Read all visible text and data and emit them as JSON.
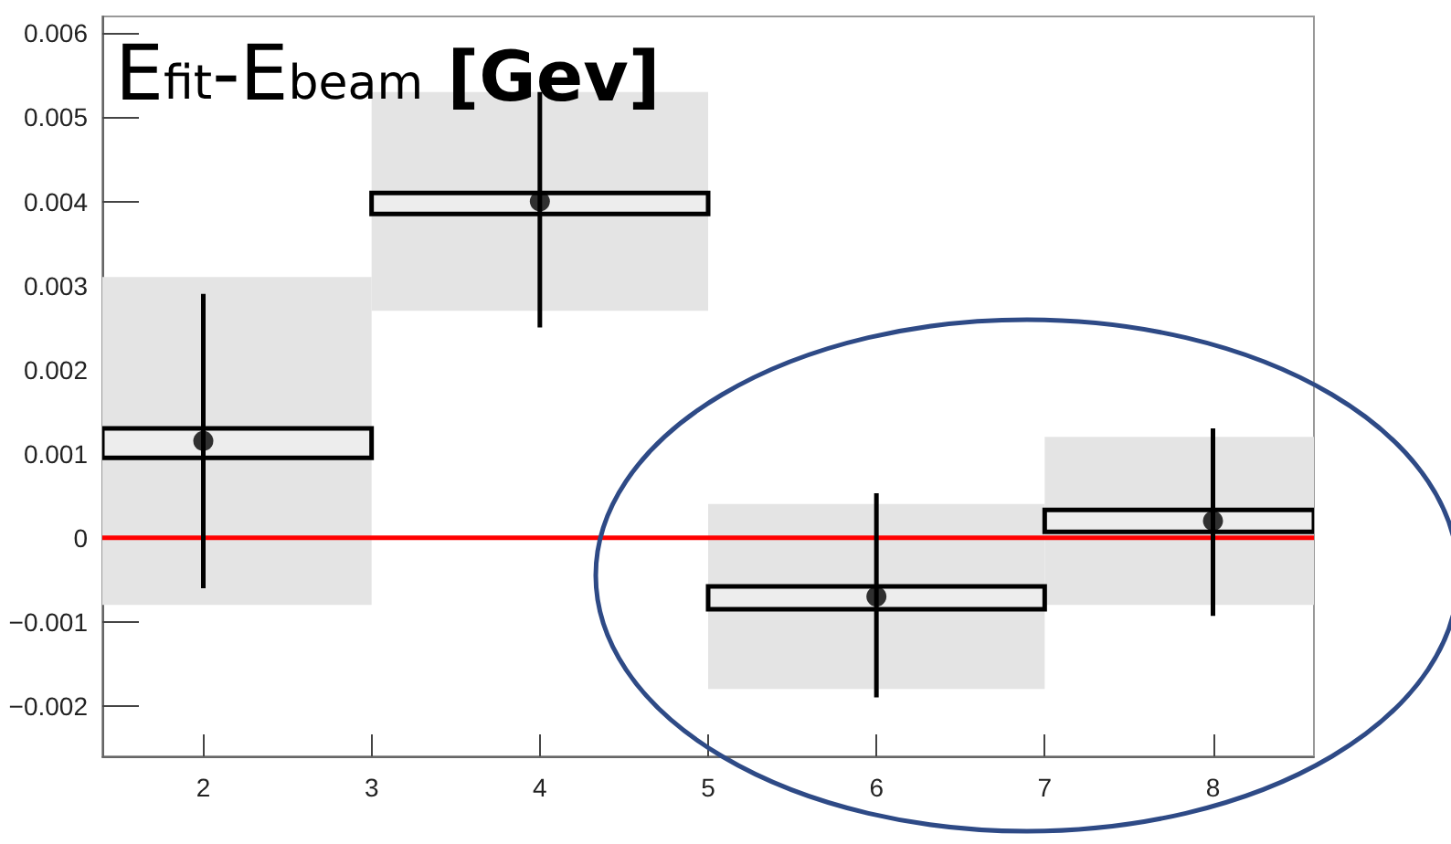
{
  "chart_data": {
    "type": "scatter",
    "title": "E$_{fit}$-E$_{beam}$ [Gev]",
    "xlim": [
      1.4,
      8.6
    ],
    "xticks": [
      2,
      3,
      4,
      5,
      6,
      7,
      8
    ],
    "ylim": [
      -0.0026,
      0.0062
    ],
    "yticks": [
      {
        "value": -0.002,
        "label": "−0.002"
      },
      {
        "value": -0.001,
        "label": "−0.001"
      },
      0,
      0.001,
      0.002,
      0.003,
      0.004,
      0.005,
      0.006
    ],
    "grid": false,
    "marker": "circle",
    "series": [
      {
        "type": "bar",
        "color": "#e4e4e4",
        "x": [
          2,
          4,
          6,
          8
        ],
        "base": [
          -0.0008,
          0.0027,
          -0.0018,
          -0.0008
        ],
        "values": [
          0.0039,
          0.0026,
          0.0022,
          0.002
        ]
      },
      {
        "type": "bar",
        "color": "#000000",
        "x": [
          2,
          4,
          6,
          8
        ],
        "base": [
          0.00095,
          0.00385,
          -0.00085,
          7e-05
        ],
        "values": [
          0.00035,
          0.00025,
          0.00027,
          0.00026
        ]
      },
      {
        "color": "#000000",
        "x": [
          2,
          4,
          6,
          8
        ],
        "values": [
          0.00115,
          0.004,
          -0.0007,
          0.0002
        ],
        "errors": [
          [
            -0.0006,
            0.0029
          ],
          [
            0.0025,
            0.0053
          ],
          [
            -0.0019,
            0.00053
          ],
          [
            -0.00093,
            0.0013
          ]
        ]
      }
    ],
    "ref_lines": [
      {
        "axis": "y",
        "value": 0,
        "color": "#ff0000",
        "line_style": "solid"
      }
    ]
  }
}
